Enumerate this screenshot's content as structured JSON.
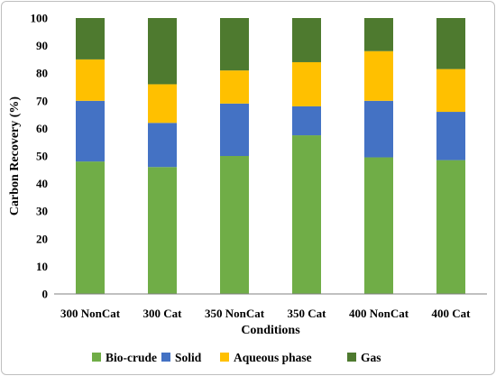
{
  "chart_data": {
    "type": "bar",
    "stacked": true,
    "title": "",
    "xlabel": "Conditions",
    "ylabel": "Carbon Recovery (%)",
    "ylim": [
      0,
      100
    ],
    "yticks": [
      0,
      10,
      20,
      30,
      40,
      50,
      60,
      70,
      80,
      90,
      100
    ],
    "grid": false,
    "legend_position": "bottom",
    "categories": [
      "300 NonCat",
      "300 Cat",
      "350 NonCat",
      "350 Cat",
      "400 NonCat",
      "400 Cat"
    ],
    "series": [
      {
        "name": "Bio-crude",
        "color": "#70ad47",
        "values": [
          48,
          46,
          50,
          57.5,
          49.5,
          48.5
        ]
      },
      {
        "name": "Solid",
        "color": "#4472c4",
        "values": [
          22,
          16,
          19,
          10.5,
          20.5,
          17.5
        ]
      },
      {
        "name": "Aqueous phase",
        "color": "#ffc000",
        "values": [
          15,
          14,
          12,
          16,
          18,
          15.5
        ]
      },
      {
        "name": "Gas",
        "color": "#4e7a2f",
        "values": [
          15,
          24,
          19,
          16,
          12,
          18.5
        ]
      }
    ]
  }
}
